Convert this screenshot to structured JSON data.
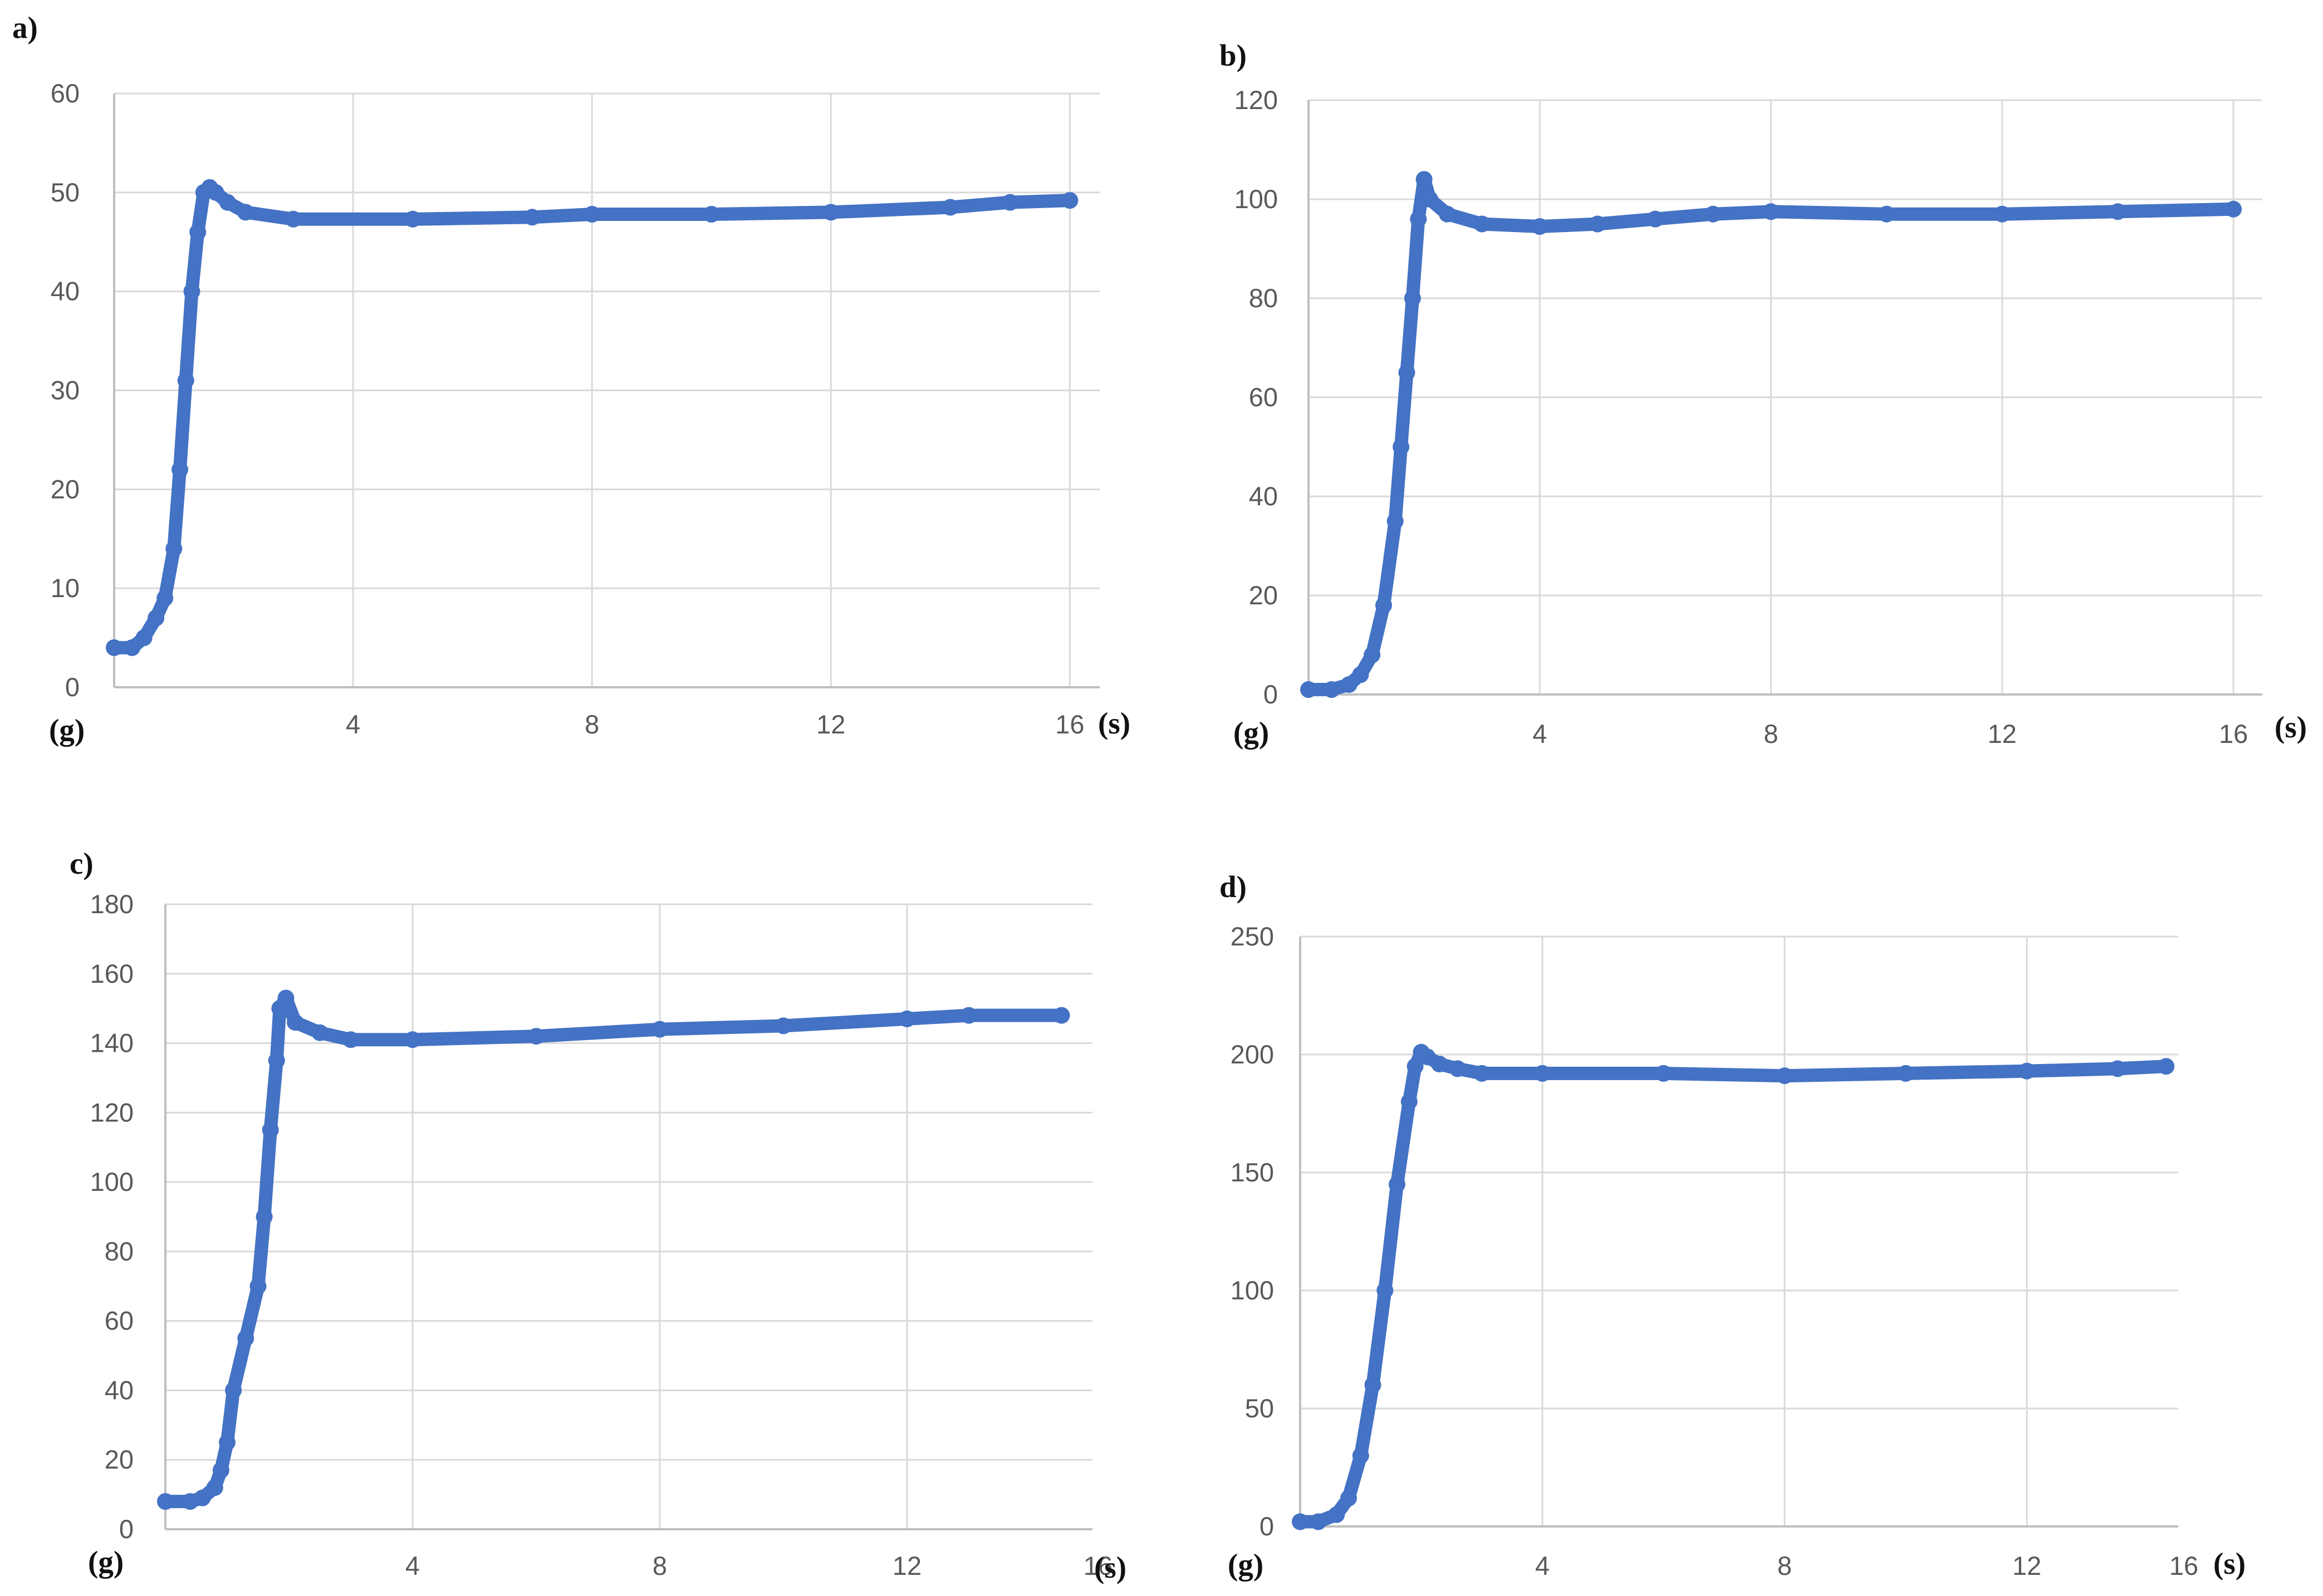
{
  "colors": {
    "series": "#4472c4",
    "grid": "#d9d9d9",
    "axis": "#bfbfbf",
    "tick_text": "#595959"
  },
  "chart_data": [
    {
      "type": "scatter",
      "panel_label": "a)",
      "y_unit_label": "(g)",
      "x_unit_label": "(s)",
      "xlim": [
        0,
        16.5
      ],
      "ylim": [
        0,
        60
      ],
      "x_ticks": [
        4,
        8,
        12,
        16
      ],
      "y_ticks": [
        0,
        10,
        20,
        30,
        40,
        50,
        60
      ],
      "grid": true,
      "legend": "none",
      "series": [
        {
          "x": [
            0.0,
            0.3,
            0.5,
            0.7,
            0.85,
            1.0,
            1.1,
            1.2,
            1.3,
            1.4,
            1.5,
            1.6,
            1.7,
            1.9,
            2.2,
            3.0,
            5.0,
            7.0,
            8.0,
            10.0,
            12.0,
            14.0,
            15.0,
            16.0
          ],
          "y": [
            4,
            4,
            5,
            7,
            9,
            14,
            22,
            31,
            40,
            46,
            50,
            50.5,
            50,
            49,
            48,
            47.3,
            47.3,
            47.5,
            47.8,
            47.8,
            48,
            48.5,
            49,
            49.2
          ]
        }
      ]
    },
    {
      "type": "scatter",
      "panel_label": "b)",
      "y_unit_label": "(g)",
      "x_unit_label": "(s)",
      "xlim": [
        0,
        16.5
      ],
      "ylim": [
        0,
        120
      ],
      "x_ticks": [
        4,
        8,
        12,
        16
      ],
      "y_ticks": [
        0,
        20,
        40,
        60,
        80,
        100,
        120
      ],
      "grid": true,
      "legend": "none",
      "series": [
        {
          "x": [
            0.0,
            0.4,
            0.7,
            0.9,
            1.1,
            1.3,
            1.5,
            1.6,
            1.7,
            1.8,
            1.9,
            2.0,
            2.1,
            2.4,
            3.0,
            4.0,
            5.0,
            6.0,
            7.0,
            8.0,
            10.0,
            12.0,
            14.0,
            16.0
          ],
          "y": [
            1,
            1,
            2,
            4,
            8,
            18,
            35,
            50,
            65,
            80,
            96,
            104,
            100,
            97,
            95,
            94.5,
            95,
            96,
            97,
            97.5,
            97,
            97,
            97.5,
            98
          ]
        }
      ]
    },
    {
      "type": "scatter",
      "panel_label": "c)",
      "y_unit_label": "(g)",
      "x_unit_label": "(s)",
      "xlim": [
        0,
        15
      ],
      "ylim": [
        0,
        180
      ],
      "x_ticks": [
        4,
        8,
        12,
        16
      ],
      "y_ticks": [
        0,
        20,
        40,
        60,
        80,
        100,
        120,
        140,
        160,
        180
      ],
      "grid": true,
      "legend": "none",
      "series": [
        {
          "x": [
            0.0,
            0.4,
            0.6,
            0.8,
            0.9,
            1.0,
            1.1,
            1.3,
            1.5,
            1.6,
            1.7,
            1.8,
            1.85,
            1.95,
            2.1,
            2.5,
            3.0,
            4.0,
            6.0,
            8.0,
            10.0,
            12.0,
            13.0,
            14.5
          ],
          "y": [
            8,
            8,
            9,
            12,
            17,
            25,
            40,
            55,
            70,
            90,
            115,
            135,
            150,
            153,
            146,
            143,
            141,
            141,
            142,
            144,
            145,
            147,
            148,
            148
          ]
        }
      ]
    },
    {
      "type": "scatter",
      "panel_label": "d)",
      "y_unit_label": "(g)",
      "x_unit_label": "(s)",
      "xlim": [
        0,
        14.5
      ],
      "ylim": [
        0,
        250
      ],
      "x_ticks": [
        4,
        8,
        12,
        16
      ],
      "y_ticks": [
        0,
        50,
        100,
        150,
        200,
        250
      ],
      "grid": true,
      "legend": "none",
      "series": [
        {
          "x": [
            0.0,
            0.3,
            0.6,
            0.8,
            1.0,
            1.2,
            1.4,
            1.6,
            1.8,
            1.9,
            2.0,
            2.1,
            2.3,
            2.6,
            3.0,
            4.0,
            6.0,
            8.0,
            10.0,
            12.0,
            13.5,
            14.3
          ],
          "y": [
            2,
            2,
            5,
            12,
            30,
            60,
            100,
            145,
            180,
            195,
            201,
            199,
            196,
            194,
            192,
            192,
            192,
            191,
            192,
            193,
            194,
            195
          ]
        }
      ]
    }
  ]
}
